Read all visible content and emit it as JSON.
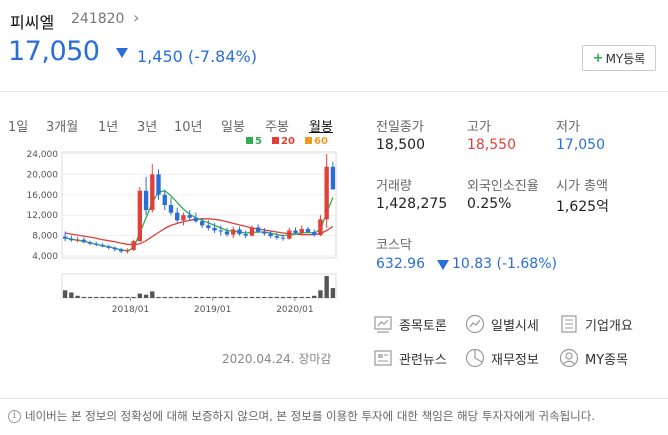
{
  "stock": {
    "name": "피씨엘",
    "code": "241820",
    "code_arrow": "›",
    "price": "17,050",
    "change": "1,450 (-7.84%)",
    "direction": "down"
  },
  "my_button": {
    "plus": "+",
    "label": "MY등록"
  },
  "period_tabs": [
    "1일",
    "3개월",
    "1년",
    "3년",
    "10년",
    "일봉",
    "주봉",
    "월봉"
  ],
  "active_tab": "월봉",
  "legend": [
    {
      "label": "5",
      "color": "#2fae4d"
    },
    {
      "label": "20",
      "color": "#e0403a"
    },
    {
      "label": "60",
      "color": "#f09a22"
    }
  ],
  "chart_data": {
    "type": "candlestick",
    "y_ticks": [
      "24,000",
      "20,000",
      "16,000",
      "12,000",
      "8,000",
      "4,000"
    ],
    "ylim": [
      4000,
      24000
    ],
    "x_ticks": [
      "2018/01",
      "2019/01",
      "2020/01"
    ],
    "candles": [
      [
        7800,
        8800,
        6900,
        7400
      ],
      [
        7400,
        8000,
        6800,
        7100
      ],
      [
        7100,
        7700,
        6700,
        7200
      ],
      [
        7200,
        7600,
        6500,
        6700
      ],
      [
        6700,
        7000,
        6100,
        6400
      ],
      [
        6400,
        6800,
        5900,
        6200
      ],
      [
        6200,
        6500,
        5700,
        5900
      ],
      [
        5900,
        6200,
        5300,
        5600
      ],
      [
        5600,
        5900,
        4900,
        5300
      ],
      [
        5300,
        5600,
        4600,
        4900
      ],
      [
        4900,
        5500,
        4500,
        5200
      ],
      [
        5200,
        7200,
        5000,
        6900
      ],
      [
        6900,
        17500,
        6800,
        16800
      ],
      [
        16800,
        19500,
        12000,
        13000
      ],
      [
        13000,
        22000,
        12500,
        20000
      ],
      [
        20000,
        21000,
        15000,
        16000
      ],
      [
        16000,
        17000,
        13000,
        14000
      ],
      [
        14000,
        15500,
        12000,
        12500
      ],
      [
        12500,
        13500,
        10500,
        11000
      ],
      [
        11000,
        12500,
        10000,
        12000
      ],
      [
        12000,
        13000,
        11000,
        11500
      ],
      [
        11500,
        12500,
        10500,
        10800
      ],
      [
        10800,
        11500,
        9500,
        10000
      ],
      [
        10000,
        11000,
        9000,
        9500
      ],
      [
        9500,
        10500,
        8500,
        9000
      ],
      [
        9000,
        10000,
        8000,
        8800
      ],
      [
        8800,
        9500,
        7800,
        8200
      ],
      [
        8200,
        9800,
        7500,
        9200
      ],
      [
        9200,
        9800,
        8000,
        8300
      ],
      [
        8300,
        9000,
        7500,
        8000
      ],
      [
        8000,
        10000,
        7800,
        9600
      ],
      [
        9600,
        10200,
        8500,
        8800
      ],
      [
        8800,
        9500,
        8000,
        8400
      ],
      [
        8400,
        9000,
        7500,
        7900
      ],
      [
        7900,
        8500,
        7200,
        7600
      ],
      [
        7600,
        8200,
        7000,
        7400
      ],
      [
        7400,
        9500,
        7200,
        9000
      ],
      [
        9000,
        9600,
        8200,
        8500
      ],
      [
        8500,
        10000,
        8000,
        9300
      ],
      [
        9300,
        9700,
        8500,
        8700
      ],
      [
        8700,
        9200,
        7800,
        8100
      ],
      [
        8100,
        12000,
        7900,
        11200
      ],
      [
        11200,
        24000,
        9500,
        21500
      ],
      [
        21500,
        22500,
        17000,
        17050
      ]
    ],
    "ma5": [
      7600,
      7300,
      7100,
      6900,
      6600,
      6300,
      6000,
      5800,
      5500,
      5200,
      5000,
      5600,
      8500,
      11500,
      14500,
      16500,
      16800,
      15800,
      14500,
      13200,
      12200,
      11500,
      11000,
      10500,
      10000,
      9500,
      9000,
      8900,
      8700,
      8500,
      8600,
      8700,
      8700,
      8500,
      8200,
      8000,
      8100,
      8300,
      8500,
      8600,
      8500,
      9200,
      12500,
      15500
    ],
    "ma20": [
      8500,
      8300,
      8100,
      7900,
      7700,
      7500,
      7200,
      7000,
      6800,
      6500,
      6300,
      6200,
      6400,
      7000,
      7800,
      8600,
      9400,
      10000,
      10400,
      10700,
      11000,
      11200,
      11300,
      11300,
      11200,
      11000,
      10700,
      10400,
      10100,
      9800,
      9500,
      9300,
      9100,
      8900,
      8700,
      8500,
      8400,
      8300,
      8200,
      8200,
      8200,
      8400,
      9000,
      9800
    ],
    "volume": [
      0.35,
      0.25,
      0.1,
      0.05,
      0.05,
      0.05,
      0.05,
      0.05,
      0.05,
      0.05,
      0.05,
      0.05,
      0.2,
      0.15,
      0.3,
      0.05,
      0.05,
      0.05,
      0.05,
      0.05,
      0.05,
      0.05,
      0.05,
      0.05,
      0.05,
      0.05,
      0.05,
      0.05,
      0.05,
      0.05,
      0.05,
      0.05,
      0.05,
      0.05,
      0.05,
      0.05,
      0.05,
      0.05,
      0.05,
      0.05,
      0.1,
      0.35,
      1.0,
      0.45
    ]
  },
  "stats": {
    "prev_close_label": "전일종가",
    "prev_close": "18,500",
    "high_label": "고가",
    "high": "18,550",
    "low_label": "저가",
    "low": "17,050",
    "volume_label": "거래량",
    "volume": "1,428,275",
    "foreign_label": "외국인소진율",
    "foreign": "0.25%",
    "mcap_label": "시가 총액",
    "mcap": "1,625억"
  },
  "market": {
    "label": "코스닥",
    "index": "632.96",
    "change": "10.83 (-1.68%)"
  },
  "links": [
    "종목토론",
    "일별시세",
    "기업개요",
    "관련뉴스",
    "재무정보",
    "MY종목"
  ],
  "date": "2020.04.24. 장마감",
  "notice": "네이버는 본 정보의 정확성에 대해 보증하지 않으며, 본 정보를 이용한 투자에 대한 책임은 해당 투자자에게 귀속됩니다.",
  "colors": {
    "up": "#e0403a",
    "down": "#2a6ed9",
    "accent": "#2fae4d"
  }
}
